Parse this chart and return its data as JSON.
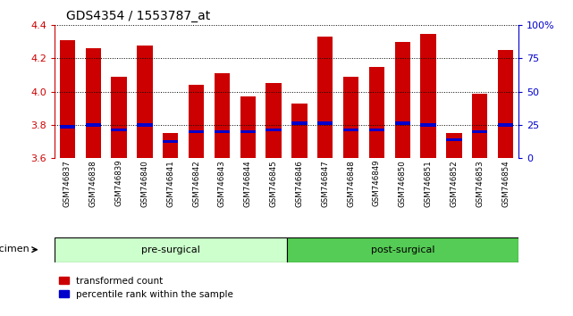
{
  "title": "GDS4354 / 1553787_at",
  "samples": [
    "GSM746837",
    "GSM746838",
    "GSM746839",
    "GSM746840",
    "GSM746841",
    "GSM746842",
    "GSM746843",
    "GSM746844",
    "GSM746845",
    "GSM746846",
    "GSM746847",
    "GSM746848",
    "GSM746849",
    "GSM746850",
    "GSM746851",
    "GSM746852",
    "GSM746853",
    "GSM746854"
  ],
  "bar_heights": [
    4.31,
    4.26,
    4.09,
    4.28,
    3.75,
    4.04,
    4.11,
    3.97,
    4.05,
    3.93,
    4.33,
    4.09,
    4.15,
    4.3,
    4.35,
    3.75,
    3.99,
    4.25
  ],
  "percentile_values": [
    3.78,
    3.79,
    3.76,
    3.79,
    3.69,
    3.75,
    3.75,
    3.75,
    3.76,
    3.8,
    3.8,
    3.76,
    3.76,
    3.8,
    3.79,
    3.7,
    3.75,
    3.79
  ],
  "percentile_heights": [
    0.018,
    0.018,
    0.018,
    0.018,
    0.018,
    0.018,
    0.018,
    0.018,
    0.018,
    0.018,
    0.018,
    0.018,
    0.018,
    0.018,
    0.018,
    0.018,
    0.018,
    0.018
  ],
  "ymin": 3.6,
  "ymax": 4.4,
  "bar_color": "#cc0000",
  "percentile_color": "#0000cc",
  "grid_color": "#000000",
  "title_fontsize": 10,
  "group1_label": "pre-surgical",
  "group2_label": "post-surgical",
  "group1_count": 9,
  "group1_color": "#ccffcc",
  "group2_color": "#55cc55",
  "xlabel": "specimen",
  "legend_red": "transformed count",
  "legend_blue": "percentile rank within the sample",
  "right_axis_ticks": [
    0,
    25,
    50,
    75,
    100
  ],
  "right_axis_labels": [
    "0",
    "25",
    "50",
    "75",
    "100%"
  ],
  "right_axis_color": "#0000cc",
  "left_axis_color": "#cc0000",
  "label_bg_color": "#cccccc"
}
